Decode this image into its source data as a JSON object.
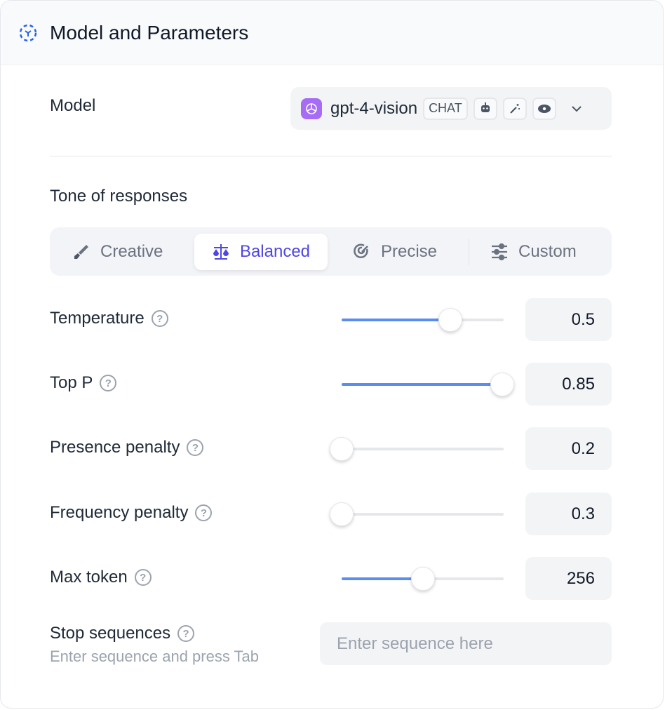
{
  "header": {
    "title": "Model and Parameters"
  },
  "model": {
    "label": "Model",
    "name": "gpt-4-vision",
    "badge": "CHAT",
    "capability_icons": [
      "robot-icon",
      "magic-wand-icon",
      "eye-icon"
    ]
  },
  "tone": {
    "label": "Tone of responses",
    "tabs": [
      {
        "label": "Creative",
        "icon": "brush-icon"
      },
      {
        "label": "Balanced",
        "icon": "scale-icon",
        "active": true
      },
      {
        "label": "Precise",
        "icon": "target-icon"
      },
      {
        "label": "Custom",
        "icon": "sliders-icon"
      }
    ]
  },
  "params": [
    {
      "label": "Temperature",
      "value": "0.5",
      "slider_fraction": 0.67
    },
    {
      "label": "Top P",
      "value": "0.85",
      "slider_fraction": 0.99
    },
    {
      "label": "Presence penalty",
      "value": "0.2",
      "slider_fraction": 0
    },
    {
      "label": "Frequency penalty",
      "value": "0.3",
      "slider_fraction": 0
    },
    {
      "label": "Max token",
      "value": "256",
      "slider_fraction": 0.5
    }
  ],
  "stop": {
    "label": "Stop sequences",
    "hint": "Enter sequence and press Tab",
    "placeholder": "Enter sequence here"
  },
  "colors": {
    "accent": "#4f46e5",
    "slider": "#5b8def",
    "model_icon": "#a66cf5"
  }
}
